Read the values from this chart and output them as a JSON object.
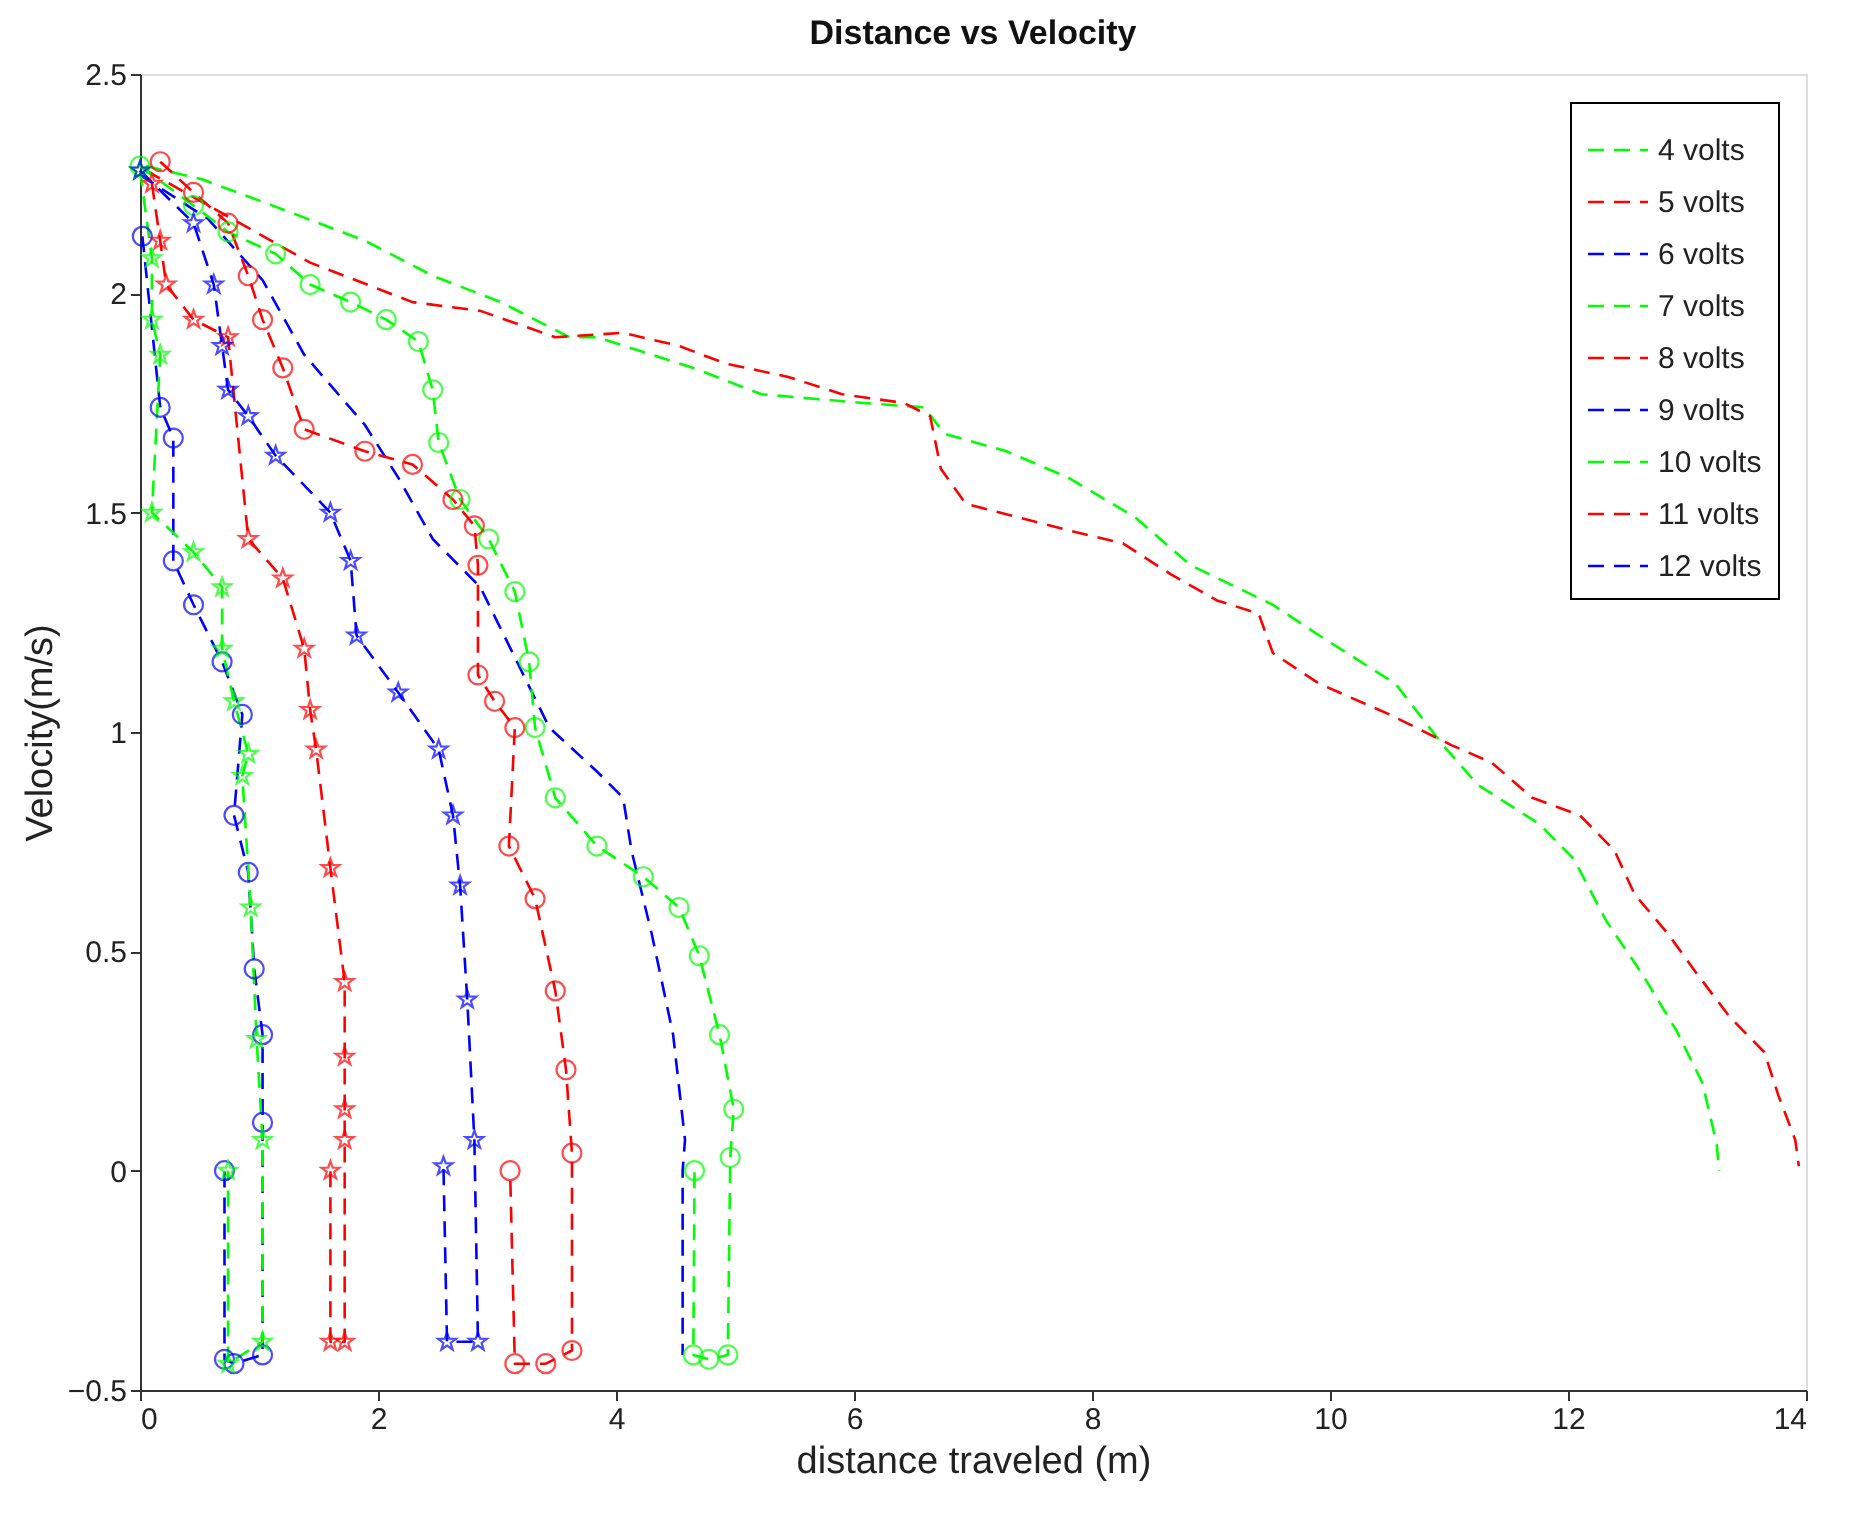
{
  "chart_data": {
    "type": "line",
    "title": "Distance vs Velocity",
    "xlabel": "distance traveled (m)",
    "ylabel": "Velocity(m/s)",
    "xlim": [
      0,
      14
    ],
    "xticks": [
      0,
      2,
      4,
      6,
      8,
      10,
      12,
      14
    ],
    "ylim": [
      -0.5,
      2.5
    ],
    "yticks": [
      -0.5,
      0,
      0.5,
      1,
      1.5,
      2,
      2.5
    ],
    "grid": false,
    "legend": "top right",
    "line_style": "dashed",
    "series": [
      {
        "name": "4 volts",
        "color": "#00ff00",
        "marker": "none",
        "x": [
          0.05,
          0.52,
          1.31,
          1.89,
          2.46,
          3.03,
          3.61,
          3.84,
          4.65,
          5.22,
          6.08,
          6.59,
          6.76,
          7.28,
          7.8,
          8.36,
          8.83,
          9.52,
          9.91,
          10.55,
          10.95,
          11.24,
          11.76,
          12.05,
          12.32,
          12.62,
          12.91,
          13.13,
          13.25,
          13.27
        ],
        "values": [
          2.29,
          2.26,
          2.18,
          2.12,
          2.04,
          1.98,
          1.9,
          1.9,
          1.83,
          1.77,
          1.75,
          1.74,
          1.68,
          1.64,
          1.58,
          1.49,
          1.38,
          1.29,
          1.22,
          1.11,
          0.97,
          0.88,
          0.79,
          0.71,
          0.57,
          0.45,
          0.32,
          0.2,
          0.06,
          0.0
        ]
      },
      {
        "name": "5 volts",
        "color": "#ff0000",
        "marker": "none",
        "x": [
          0.05,
          1.43,
          2.29,
          2.86,
          3.49,
          4.06,
          4.53,
          4.92,
          5.44,
          5.9,
          6.42,
          6.64,
          6.73,
          6.94,
          7.8,
          8.26,
          8.66,
          9.05,
          9.4,
          9.52,
          9.91,
          10.5,
          11.02,
          11.36,
          11.7,
          12.1,
          12.39,
          12.56,
          12.84,
          13.08,
          13.36,
          13.65,
          13.77,
          13.91,
          13.94
        ],
        "values": [
          2.28,
          2.07,
          1.98,
          1.96,
          1.9,
          1.91,
          1.88,
          1.84,
          1.81,
          1.77,
          1.75,
          1.72,
          1.6,
          1.52,
          1.46,
          1.43,
          1.36,
          1.3,
          1.27,
          1.18,
          1.11,
          1.04,
          0.97,
          0.93,
          0.85,
          0.81,
          0.73,
          0.63,
          0.54,
          0.45,
          0.35,
          0.27,
          0.17,
          0.07,
          0.01
        ]
      },
      {
        "name": "6 volts",
        "color": "#0000ff",
        "marker": "none",
        "x": [
          0.0,
          0.57,
          1.03,
          1.38,
          1.89,
          2.17,
          2.46,
          2.86,
          3.44,
          3.84,
          4.06,
          4.13,
          4.3,
          4.48,
          4.58,
          4.56,
          4.56
        ],
        "values": [
          2.27,
          2.17,
          2.03,
          1.86,
          1.7,
          1.58,
          1.44,
          1.33,
          1.01,
          0.91,
          0.85,
          0.73,
          0.54,
          0.31,
          0.07,
          0.0,
          -0.42
        ]
      },
      {
        "name": "7 volts",
        "color": "#00ff00",
        "marker": "circle",
        "x": [
          0.0,
          0.45,
          0.74,
          1.14,
          1.43,
          1.77,
          2.07,
          2.34,
          2.46,
          2.51,
          2.69,
          2.93,
          3.15,
          3.27,
          3.32,
          3.49,
          3.84,
          4.23,
          4.53,
          4.7,
          4.87,
          4.99,
          4.96,
          4.94,
          4.78,
          4.65,
          4.66
        ],
        "values": [
          2.29,
          2.2,
          2.14,
          2.09,
          2.02,
          1.98,
          1.94,
          1.89,
          1.78,
          1.66,
          1.53,
          1.44,
          1.32,
          1.16,
          1.01,
          0.85,
          0.74,
          0.67,
          0.6,
          0.49,
          0.31,
          0.14,
          0.03,
          -0.42,
          -0.43,
          -0.42,
          0.0
        ]
      },
      {
        "name": "8 volts",
        "color": "#ff0000",
        "marker": "circle",
        "x": [
          0.17,
          0.45,
          0.74,
          0.91,
          1.03,
          1.2,
          1.38,
          1.89,
          2.29,
          2.63,
          2.81,
          2.84,
          2.84,
          2.98,
          3.15,
          3.1,
          3.32,
          3.49,
          3.58,
          3.63,
          3.63,
          3.41,
          3.15,
          3.11
        ],
        "values": [
          2.3,
          2.23,
          2.16,
          2.04,
          1.94,
          1.83,
          1.69,
          1.64,
          1.61,
          1.53,
          1.47,
          1.38,
          1.13,
          1.07,
          1.01,
          0.74,
          0.62,
          0.41,
          0.23,
          0.04,
          -0.41,
          -0.44,
          -0.44,
          0.0
        ]
      },
      {
        "name": "9 volts",
        "color": "#0000ff",
        "marker": "circle",
        "x": [
          0.02,
          0.17,
          0.28,
          0.28,
          0.45,
          0.69,
          0.86,
          0.79,
          0.91,
          0.96,
          1.03,
          1.03,
          1.03,
          0.79,
          0.71,
          0.71
        ],
        "values": [
          2.13,
          1.74,
          1.67,
          1.39,
          1.29,
          1.16,
          1.04,
          0.81,
          0.68,
          0.46,
          0.31,
          0.11,
          -0.42,
          -0.44,
          -0.43,
          0.0
        ]
      },
      {
        "name": "10 volts",
        "color": "#00ff00",
        "marker": "star",
        "x": [
          0.0,
          0.1,
          0.1,
          0.17,
          0.1,
          0.45,
          0.69,
          0.69,
          0.79,
          0.91,
          0.86,
          0.93,
          0.98,
          1.03,
          1.03,
          0.74,
          0.74
        ],
        "values": [
          2.28,
          2.08,
          1.94,
          1.86,
          1.5,
          1.41,
          1.33,
          1.19,
          1.07,
          0.95,
          0.9,
          0.6,
          0.3,
          0.07,
          -0.39,
          -0.44,
          0.0
        ]
      },
      {
        "name": "11 volts",
        "color": "#ff0000",
        "marker": "star",
        "x": [
          0.1,
          0.17,
          0.22,
          0.45,
          0.74,
          0.91,
          1.2,
          1.38,
          1.43,
          1.48,
          1.6,
          1.72,
          1.72,
          1.72,
          1.72,
          1.72,
          1.6,
          1.6
        ],
        "values": [
          2.25,
          2.12,
          2.02,
          1.94,
          1.9,
          1.44,
          1.35,
          1.19,
          1.05,
          0.96,
          0.69,
          0.43,
          0.26,
          0.14,
          0.07,
          -0.39,
          -0.39,
          0.0
        ]
      },
      {
        "name": "12 volts",
        "color": "#0000ff",
        "marker": "star",
        "x": [
          0.0,
          0.45,
          0.62,
          0.69,
          0.74,
          0.91,
          1.14,
          1.6,
          1.77,
          1.82,
          2.17,
          2.51,
          2.63,
          2.69,
          2.75,
          2.81,
          2.84,
          2.58,
          2.55
        ],
        "values": [
          2.28,
          2.16,
          2.02,
          1.88,
          1.78,
          1.72,
          1.63,
          1.5,
          1.39,
          1.22,
          1.09,
          0.96,
          0.81,
          0.65,
          0.39,
          0.07,
          -0.39,
          -0.39,
          0.01
        ]
      }
    ]
  }
}
